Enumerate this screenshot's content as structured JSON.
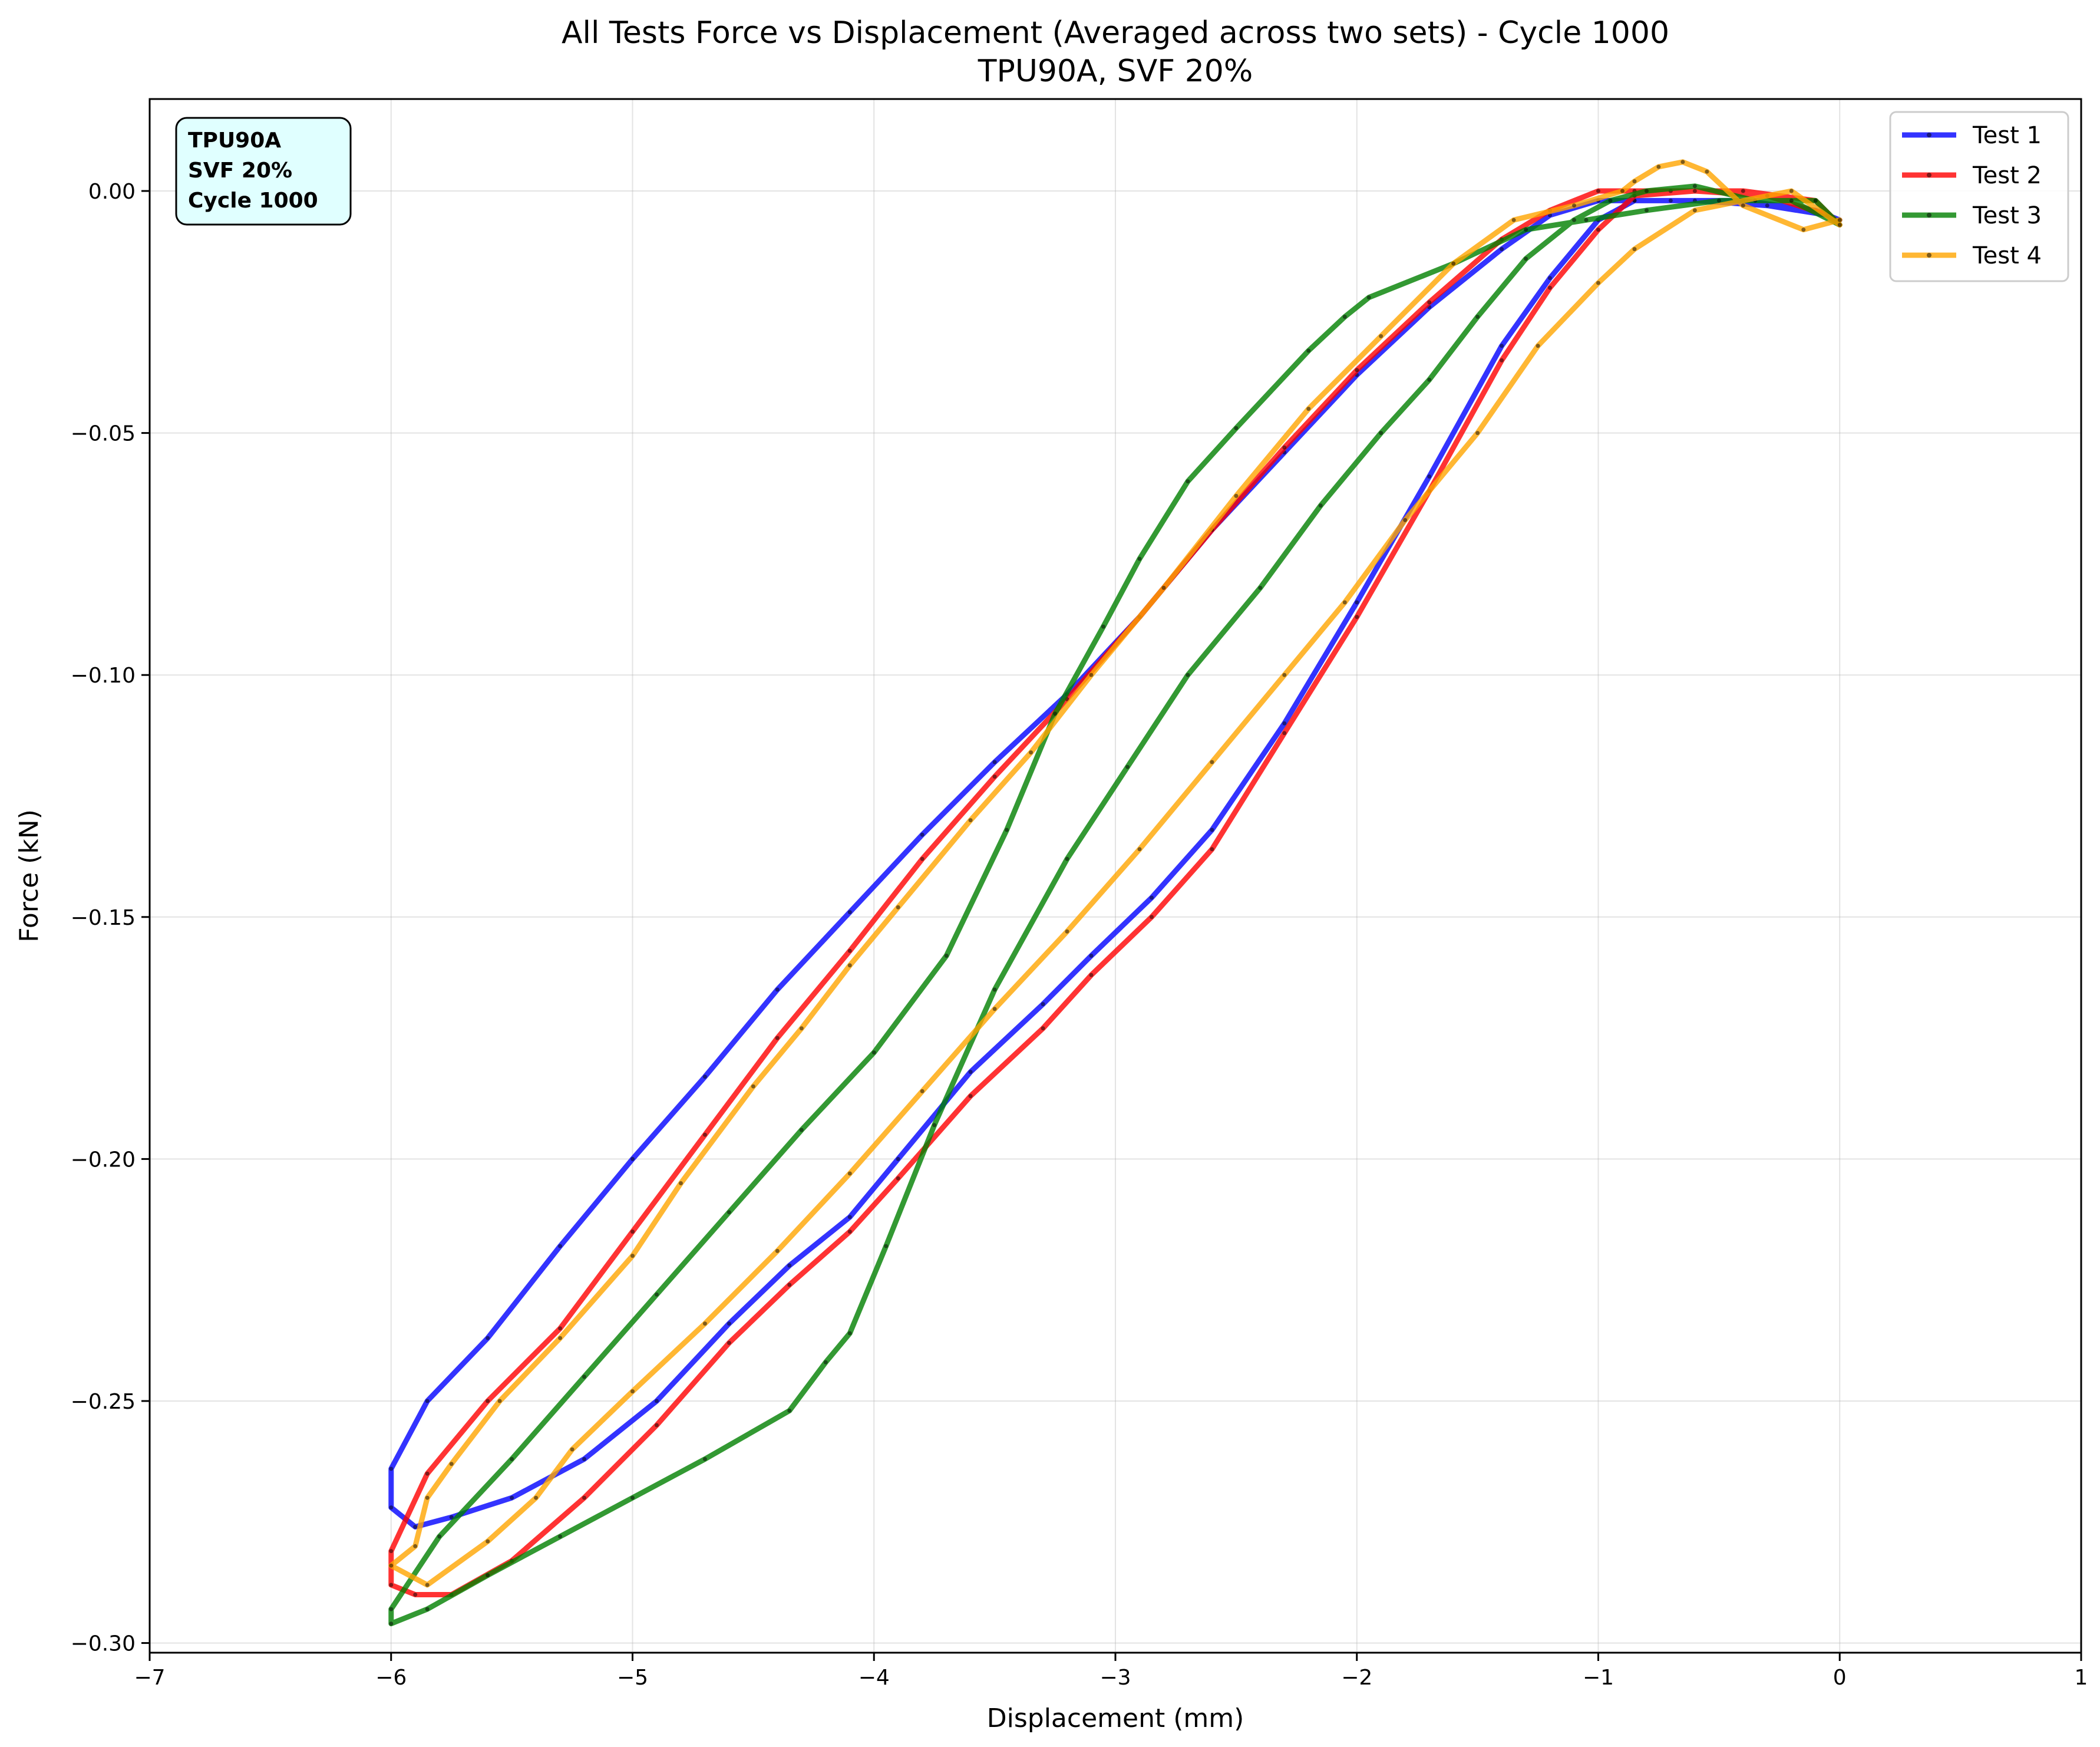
{
  "chart_data": {
    "type": "line",
    "title": "All Tests Force vs Displacement (Averaged across two sets) - Cycle 1000",
    "subtitle": "TPU90A, SVF 20%",
    "xlabel": "Displacement (mm)",
    "ylabel": "Force (kN)",
    "xlim": [
      -7,
      1
    ],
    "ylim": [
      -0.302,
      0.019
    ],
    "xticks": [
      -7,
      -6,
      -5,
      -4,
      -3,
      -2,
      -1,
      0,
      1
    ],
    "xtick_labels": [
      "−7",
      "−6",
      "−5",
      "−4",
      "−3",
      "−2",
      "−1",
      "0",
      "1"
    ],
    "yticks": [
      0.0,
      -0.05,
      -0.1,
      -0.15,
      -0.2,
      -0.25,
      -0.3
    ],
    "ytick_labels": [
      "0.00",
      "−0.05",
      "−0.10",
      "−0.15",
      "−0.20",
      "−0.25",
      "−0.30"
    ],
    "grid": true,
    "legend_position": "top-right",
    "info_box": [
      "TPU90A",
      "SVF 20%",
      "Cycle 1000"
    ],
    "info_box_color": "#e0ffff",
    "series": [
      {
        "name": "Test 1",
        "color": "#0000ff",
        "x": [
          0.0,
          -0.05,
          -0.3,
          -0.6,
          -0.85,
          -1.0,
          -1.2,
          -1.4,
          -1.7,
          -2.0,
          -2.3,
          -2.6,
          -2.85,
          -3.1,
          -3.3,
          -3.6,
          -3.9,
          -4.1,
          -4.35,
          -4.6,
          -4.9,
          -5.2,
          -5.5,
          -5.75,
          -5.9,
          -6.0,
          -6.0,
          -5.85,
          -5.6,
          -5.3,
          -5.0,
          -4.7,
          -4.4,
          -4.1,
          -3.8,
          -3.5,
          -3.2,
          -2.9,
          -2.6,
          -2.3,
          -2.0,
          -1.7,
          -1.4,
          -1.2,
          -1.0,
          -0.85,
          -0.7,
          -0.4,
          -0.1,
          0.0
        ],
        "y": [
          -0.006,
          -0.005,
          -0.003,
          -0.002,
          -0.002,
          -0.006,
          -0.018,
          -0.032,
          -0.059,
          -0.085,
          -0.11,
          -0.132,
          -0.146,
          -0.158,
          -0.168,
          -0.182,
          -0.2,
          -0.212,
          -0.222,
          -0.234,
          -0.25,
          -0.262,
          -0.27,
          -0.274,
          -0.276,
          -0.272,
          -0.264,
          -0.25,
          -0.237,
          -0.218,
          -0.2,
          -0.183,
          -0.165,
          -0.149,
          -0.133,
          -0.118,
          -0.104,
          -0.088,
          -0.07,
          -0.054,
          -0.038,
          -0.024,
          -0.012,
          -0.005,
          -0.002,
          -0.002,
          -0.002,
          -0.002,
          -0.004,
          -0.006
        ]
      },
      {
        "name": "Test 2",
        "color": "#ff0000",
        "x": [
          0.0,
          -0.05,
          -0.3,
          -0.6,
          -0.85,
          -1.0,
          -1.2,
          -1.4,
          -1.7,
          -2.0,
          -2.3,
          -2.6,
          -2.85,
          -3.1,
          -3.3,
          -3.6,
          -3.9,
          -4.1,
          -4.35,
          -4.6,
          -4.9,
          -5.2,
          -5.5,
          -5.75,
          -5.9,
          -6.0,
          -6.0,
          -5.85,
          -5.6,
          -5.3,
          -5.0,
          -4.7,
          -4.4,
          -4.1,
          -3.8,
          -3.5,
          -3.2,
          -2.9,
          -2.6,
          -2.3,
          -2.0,
          -1.7,
          -1.4,
          -1.2,
          -1.0,
          -0.85,
          -0.7,
          -0.4,
          -0.1,
          0.0
        ],
        "y": [
          -0.007,
          -0.005,
          -0.001,
          0.0,
          -0.001,
          -0.008,
          -0.02,
          -0.035,
          -0.062,
          -0.088,
          -0.112,
          -0.136,
          -0.15,
          -0.162,
          -0.173,
          -0.187,
          -0.204,
          -0.215,
          -0.226,
          -0.238,
          -0.255,
          -0.27,
          -0.283,
          -0.29,
          -0.29,
          -0.288,
          -0.281,
          -0.265,
          -0.25,
          -0.235,
          -0.215,
          -0.195,
          -0.175,
          -0.157,
          -0.138,
          -0.121,
          -0.105,
          -0.088,
          -0.07,
          -0.053,
          -0.037,
          -0.023,
          -0.01,
          -0.004,
          0.0,
          0.0,
          0.0,
          0.0,
          -0.002,
          -0.007
        ]
      },
      {
        "name": "Test 3",
        "color": "#008000",
        "x": [
          0.0,
          -0.1,
          -0.35,
          -0.6,
          -0.8,
          -0.95,
          -1.1,
          -1.3,
          -1.5,
          -1.7,
          -1.9,
          -2.15,
          -2.4,
          -2.7,
          -2.95,
          -3.2,
          -3.5,
          -3.75,
          -3.95,
          -4.1,
          -4.2,
          -4.35,
          -4.7,
          -5.0,
          -5.3,
          -5.6,
          -5.85,
          -6.0,
          -6.0,
          -5.8,
          -5.5,
          -5.2,
          -4.9,
          -4.6,
          -4.3,
          -4.0,
          -3.7,
          -3.45,
          -3.25,
          -3.05,
          -2.9,
          -2.7,
          -2.5,
          -2.2,
          -2.05,
          -1.95,
          -1.6,
          -1.3,
          -1.05,
          -0.8,
          -0.5,
          -0.2,
          0.0
        ],
        "y": [
          -0.007,
          -0.002,
          -0.002,
          0.001,
          0.0,
          -0.002,
          -0.006,
          -0.014,
          -0.026,
          -0.039,
          -0.05,
          -0.065,
          -0.082,
          -0.1,
          -0.119,
          -0.138,
          -0.165,
          -0.193,
          -0.218,
          -0.236,
          -0.242,
          -0.252,
          -0.262,
          -0.27,
          -0.278,
          -0.286,
          -0.293,
          -0.296,
          -0.293,
          -0.278,
          -0.262,
          -0.245,
          -0.228,
          -0.211,
          -0.194,
          -0.178,
          -0.158,
          -0.132,
          -0.108,
          -0.09,
          -0.076,
          -0.06,
          -0.049,
          -0.033,
          -0.026,
          -0.022,
          -0.015,
          -0.008,
          -0.006,
          -0.004,
          -0.002,
          -0.002,
          -0.007
        ]
      },
      {
        "name": "Test 4",
        "color": "#ffa500",
        "x": [
          0.0,
          -0.15,
          -0.4,
          -0.55,
          -0.65,
          -0.75,
          -0.85,
          -0.9,
          -1.1,
          -1.35,
          -1.6,
          -1.9,
          -2.2,
          -2.5,
          -2.8,
          -3.1,
          -3.35,
          -3.6,
          -3.9,
          -4.1,
          -4.3,
          -4.5,
          -4.8,
          -5.0,
          -5.3,
          -5.55,
          -5.75,
          -5.85,
          -5.9,
          -6.0,
          -5.85,
          -5.6,
          -5.4,
          -5.25,
          -5.0,
          -4.7,
          -4.4,
          -4.1,
          -3.8,
          -3.5,
          -3.2,
          -2.9,
          -2.6,
          -2.3,
          -2.05,
          -1.8,
          -1.5,
          -1.25,
          -1.0,
          -0.85,
          -0.6,
          -0.2,
          0.0
        ],
        "y": [
          -0.006,
          -0.008,
          -0.003,
          0.004,
          0.006,
          0.005,
          0.002,
          0.0,
          -0.003,
          -0.006,
          -0.015,
          -0.03,
          -0.045,
          -0.063,
          -0.082,
          -0.1,
          -0.116,
          -0.13,
          -0.148,
          -0.16,
          -0.173,
          -0.185,
          -0.205,
          -0.22,
          -0.237,
          -0.25,
          -0.263,
          -0.27,
          -0.28,
          -0.284,
          -0.288,
          -0.279,
          -0.27,
          -0.26,
          -0.248,
          -0.234,
          -0.219,
          -0.203,
          -0.186,
          -0.169,
          -0.153,
          -0.136,
          -0.118,
          -0.1,
          -0.085,
          -0.068,
          -0.05,
          -0.032,
          -0.019,
          -0.012,
          -0.004,
          0.0,
          -0.007
        ]
      }
    ]
  }
}
